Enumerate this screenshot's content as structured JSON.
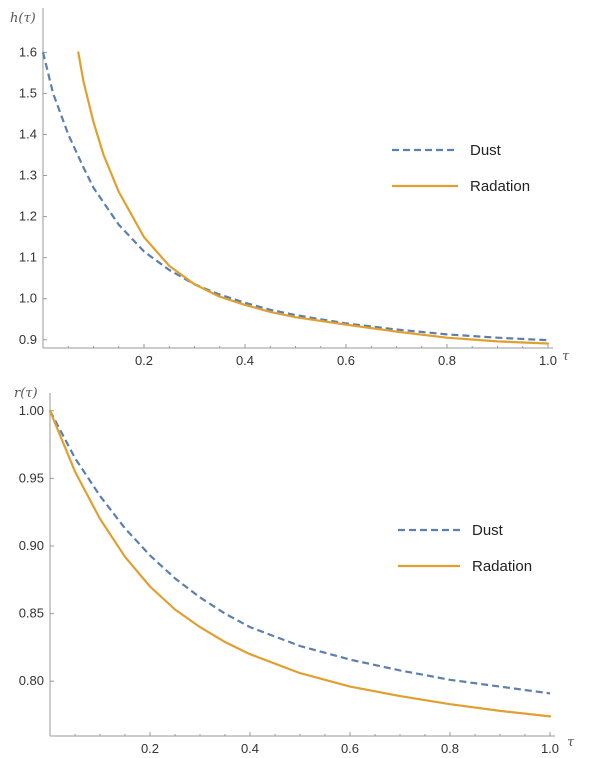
{
  "chart_data": [
    {
      "type": "line",
      "ylabel": "h(τ)",
      "xlabel": "τ",
      "xlim": [
        0,
        1.0
      ],
      "ylim": [
        0.88,
        1.63
      ],
      "xticks": [
        0.2,
        0.4,
        0.6,
        0.8,
        1.0
      ],
      "xtick_labels": [
        "0.2",
        "0.4",
        "0.6",
        "0.8",
        "1.0"
      ],
      "yticks": [
        0.9,
        1.0,
        1.1,
        1.2,
        1.3,
        1.4,
        1.5,
        1.6
      ],
      "ytick_labels": [
        "0.9",
        "1.0",
        "1.1",
        "1.2",
        "1.3",
        "1.4",
        "1.5",
        "1.6"
      ],
      "grid": false,
      "legend_position": "right",
      "series": [
        {
          "name": "Dust",
          "style": "dashed",
          "color": "#5b7fae",
          "x": [
            0.0,
            0.02,
            0.05,
            0.08,
            0.1,
            0.15,
            0.2,
            0.25,
            0.3,
            0.35,
            0.4,
            0.45,
            0.5,
            0.6,
            0.7,
            0.8,
            0.9,
            1.0
          ],
          "y": [
            1.6,
            1.5,
            1.4,
            1.32,
            1.27,
            1.18,
            1.115,
            1.07,
            1.035,
            1.01,
            0.99,
            0.973,
            0.96,
            0.94,
            0.925,
            0.913,
            0.905,
            0.899
          ]
        },
        {
          "name": "Radation",
          "style": "solid",
          "color": "#e0a030",
          "x": [
            0.07,
            0.08,
            0.1,
            0.12,
            0.15,
            0.2,
            0.25,
            0.3,
            0.35,
            0.4,
            0.45,
            0.5,
            0.6,
            0.7,
            0.8,
            0.9,
            1.0
          ],
          "y": [
            1.6,
            1.53,
            1.43,
            1.35,
            1.26,
            1.15,
            1.08,
            1.035,
            1.005,
            0.985,
            0.968,
            0.955,
            0.937,
            0.92,
            0.905,
            0.896,
            0.891
          ]
        }
      ]
    },
    {
      "type": "line",
      "ylabel": "r(τ)",
      "xlabel": "τ",
      "xlim": [
        0,
        1.0
      ],
      "ylim": [
        0.775,
        1.005
      ],
      "xticks": [
        0.2,
        0.4,
        0.6,
        0.8,
        1.0
      ],
      "xtick_labels": [
        "0.2",
        "0.4",
        "0.6",
        "0.8",
        "1.0"
      ],
      "yticks": [
        0.8,
        0.85,
        0.9,
        0.95,
        1.0
      ],
      "ytick_labels": [
        "0.80",
        "0.85",
        "0.90",
        "0.95",
        "1.00"
      ],
      "grid": false,
      "legend_position": "right",
      "series": [
        {
          "name": "Dust",
          "style": "dashed",
          "color": "#5b7fae",
          "x": [
            0.0,
            0.05,
            0.1,
            0.15,
            0.2,
            0.25,
            0.3,
            0.35,
            0.4,
            0.5,
            0.6,
            0.7,
            0.8,
            0.9,
            1.0
          ],
          "y": [
            1.0,
            0.965,
            0.937,
            0.913,
            0.893,
            0.876,
            0.862,
            0.85,
            0.84,
            0.826,
            0.816,
            0.808,
            0.801,
            0.796,
            0.791
          ]
        },
        {
          "name": "Radation",
          "style": "solid",
          "color": "#e0a030",
          "x": [
            0.0,
            0.05,
            0.1,
            0.15,
            0.2,
            0.25,
            0.3,
            0.35,
            0.4,
            0.5,
            0.6,
            0.7,
            0.8,
            0.9,
            1.0
          ],
          "y": [
            1.0,
            0.955,
            0.92,
            0.892,
            0.87,
            0.853,
            0.84,
            0.829,
            0.82,
            0.806,
            0.796,
            0.789,
            0.783,
            0.778,
            0.774
          ]
        }
      ]
    }
  ]
}
